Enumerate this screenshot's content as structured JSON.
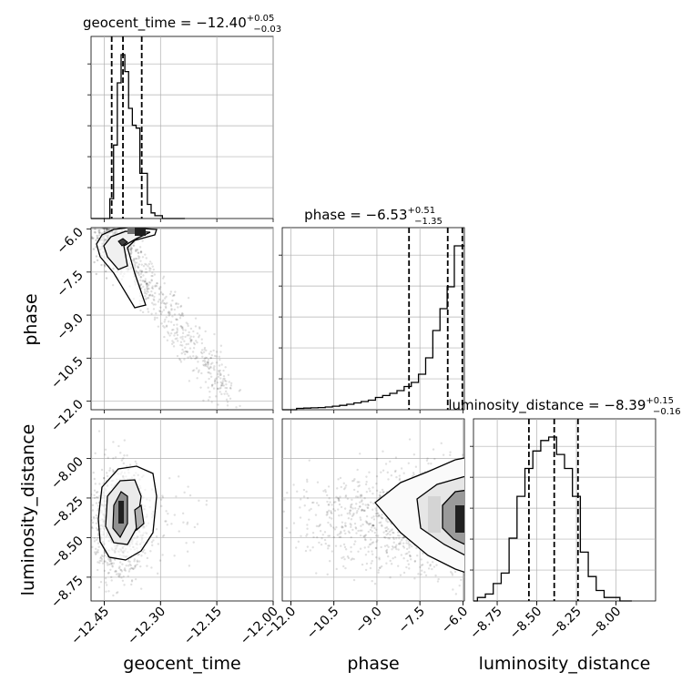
{
  "chart_data": {
    "type": "corner",
    "parameters": [
      "geocent_time",
      "phase",
      "luminosity_distance"
    ],
    "titles": [
      {
        "label": "geocent_time",
        "median": "−12.40",
        "plus": "+0.05",
        "minus": "−0.03"
      },
      {
        "label": "phase",
        "median": "−6.53",
        "plus": "+0.51",
        "minus": "−1.35"
      },
      {
        "label": "luminosity_distance",
        "median": "−8.39",
        "plus": "+0.15",
        "minus": "−0.16"
      }
    ],
    "axes": {
      "geocent_time": {
        "range": [
          -12.485,
          -12.0
        ],
        "ticks": [
          -12.45,
          -12.3,
          -12.15,
          -12.0
        ],
        "tick_labels": [
          "−12.45",
          "−12.30",
          "−12.15",
          "−12.00"
        ]
      },
      "phase": {
        "range": [
          -12.3,
          -5.95
        ],
        "ticks": [
          -12.0,
          -10.5,
          -9.0,
          -7.5,
          -6.0
        ],
        "tick_labels": [
          "−12.0",
          "−10.5",
          "−9.0",
          "−7.5",
          "−6.0"
        ]
      },
      "luminosity_distance": {
        "range": [
          -8.9,
          -7.75
        ],
        "ticks": [
          -8.75,
          -8.5,
          -8.25,
          -8.0
        ],
        "tick_labels": [
          "−8.75",
          "−8.50",
          "−8.25",
          "−8.00"
        ]
      }
    },
    "quantile_lines": {
      "geocent_time": [
        -12.43,
        -12.4,
        -12.35
      ],
      "phase": [
        -7.88,
        -6.53,
        -6.02
      ],
      "luminosity_distance": [
        -8.55,
        -8.39,
        -8.24
      ]
    },
    "histograms": {
      "geocent_time": {
        "edges": [
          -12.485,
          -12.475,
          -12.465,
          -12.455,
          -12.445,
          -12.435,
          -12.425,
          -12.415,
          -12.405,
          -12.395,
          -12.385,
          -12.375,
          -12.365,
          -12.355,
          -12.345,
          -12.335,
          -12.325,
          -12.315,
          -12.305,
          -12.295,
          -12.285,
          -12.275,
          -12.265,
          -12.255,
          -12.245,
          -12.235
        ],
        "counts": [
          0,
          0,
          0,
          0,
          0,
          7,
          26,
          48,
          58,
          52,
          39,
          33,
          32,
          16,
          16,
          5,
          2,
          1,
          1,
          0,
          0,
          0,
          0,
          0,
          0
        ]
      },
      "phase": {
        "edges": [
          -12.3,
          -12.05,
          -11.8,
          -11.55,
          -11.3,
          -11.05,
          -10.8,
          -10.55,
          -10.3,
          -10.05,
          -9.8,
          -9.55,
          -9.3,
          -9.05,
          -8.8,
          -8.55,
          -8.3,
          -8.05,
          -7.8,
          -7.55,
          -7.3,
          -7.05,
          -6.8,
          -6.55,
          -6.3,
          -6.05,
          -5.95
        ],
        "counts": [
          0,
          0,
          0.5,
          0.6,
          0.7,
          0.8,
          1,
          1.3,
          1.6,
          2,
          2.5,
          3,
          3.5,
          4.5,
          5.2,
          6,
          7,
          8.5,
          10,
          13,
          19,
          29,
          37,
          45,
          60,
          60
        ]
      },
      "luminosity_distance": {
        "edges": [
          -8.9,
          -8.875,
          -8.85,
          -8.825,
          -8.8,
          -8.775,
          -8.75,
          -8.725,
          -8.7,
          -8.675,
          -8.65,
          -8.625,
          -8.6,
          -8.575,
          -8.55,
          -8.525,
          -8.5,
          -8.475,
          -8.45,
          -8.425,
          -8.4,
          -8.375,
          -8.35,
          -8.325,
          -8.3,
          -8.275,
          -8.25,
          -8.225,
          -8.2,
          -8.175,
          -8.15,
          -8.125,
          -8.1,
          -8.075,
          -8.05,
          -8.025,
          -8.0,
          -7.975,
          -7.95,
          -7.925,
          -7.9
        ],
        "counts": [
          0,
          1,
          1,
          2,
          2,
          5,
          5,
          8,
          8,
          18,
          18,
          30,
          30,
          38,
          38,
          43,
          43,
          46,
          46,
          47,
          47,
          42,
          42,
          38,
          38,
          30,
          30,
          14,
          14,
          7,
          7,
          3,
          3,
          1,
          1,
          1,
          1,
          0,
          0,
          0
        ]
      }
    },
    "density_panels": [
      {
        "x": "geocent_time",
        "y": "phase"
      },
      {
        "x": "geocent_time",
        "y": "luminosity_distance"
      },
      {
        "x": "phase",
        "y": "luminosity_distance"
      }
    ],
    "grid": true
  }
}
